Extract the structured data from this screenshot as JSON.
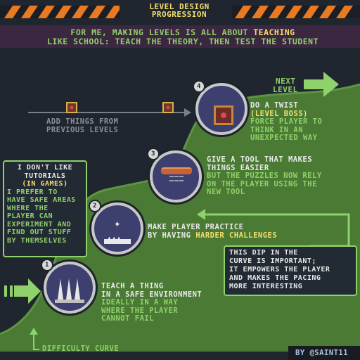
{
  "header": {
    "title_line1": "LEVEL DESIGN",
    "title_line2": "PROGRESSION"
  },
  "intro": {
    "line1_pre": "FOR ME, MAKING LEVELS IS ALL ABOUT ",
    "line1_highlight": "TEACHING",
    "line2": "LIKE SCHOOL: TEACH THE THEORY, THEN TEST THE STUDENT"
  },
  "next_level": {
    "line1": "NEXT",
    "line2": "LEVEL"
  },
  "add_things": {
    "line1": "ADD THINGS FROM",
    "line2": "PREVIOUS LEVELS"
  },
  "steps": [
    {
      "number": "1",
      "title_line1": "TEACH A THING",
      "title_line2": "IN A SAFE ENVIRONMENT",
      "sub_line1": "IDEALLY IN A WAY",
      "sub_line2": "WHERE THE PLAYER",
      "sub_line3": "CANNOT FAIL",
      "icon": "spikes-icon"
    },
    {
      "number": "2",
      "title_line1": "MAKE PLAYER PRACTICE",
      "title_line2_pre": "BY HAVING ",
      "title_line2_highlight": "HARDER CHALLENGES",
      "icon": "player-jump-icon"
    },
    {
      "number": "3",
      "title_line1": "GIVE A TOOL THAT MAKES",
      "title_line2": "THINGS EASIER",
      "sub_line1": "BUT THE PUZZLES NOW RELY",
      "sub_line2": "ON THE PLAYER USING THE",
      "sub_line3": "NEW TOOL",
      "icon": "spring-platform-icon"
    },
    {
      "number": "4",
      "title_line1": "DO A TWIST",
      "title_line2": "(LEVEL BOSS)",
      "sub_line1": "FORCE PLAYER TO",
      "sub_line2": "THINK IN AN",
      "sub_line3": "UNEXPECTED WAY",
      "icon": "boss-block-icon"
    }
  ],
  "tutorials_note": {
    "line1": "I DON'T LIKE",
    "line2": "TUTORIALS",
    "line3": "(IN GAMES)",
    "body1": "I PREFER TO",
    "body2": "HAVE SAFE AREAS",
    "body3": "WHERE THE",
    "body4": "PLAYER CAN",
    "body5": "EXPERIMENT AND",
    "body6": "FIND OUT STUFF",
    "body7": "BY THEMSELVES"
  },
  "dip_note": {
    "line1": "THIS DIP IN THE",
    "line2": "CURVE IS IMPORTANT;",
    "line3": "IT EMPOWERS THE PLAYER",
    "line4": "AND MAKES THE PACING",
    "line5": "MORE INTERESTING"
  },
  "difficulty_curve_label": "DIFFICULTY CURVE",
  "credit": "BY @SAINT11",
  "colors": {
    "background": "#20262f",
    "curve_fill": "#4a7a34",
    "accent_green": "#8fd16a",
    "accent_yellow": "#f3dd6d",
    "stripe_orange": "#ea7a22",
    "banner_purple": "#3b2740"
  }
}
